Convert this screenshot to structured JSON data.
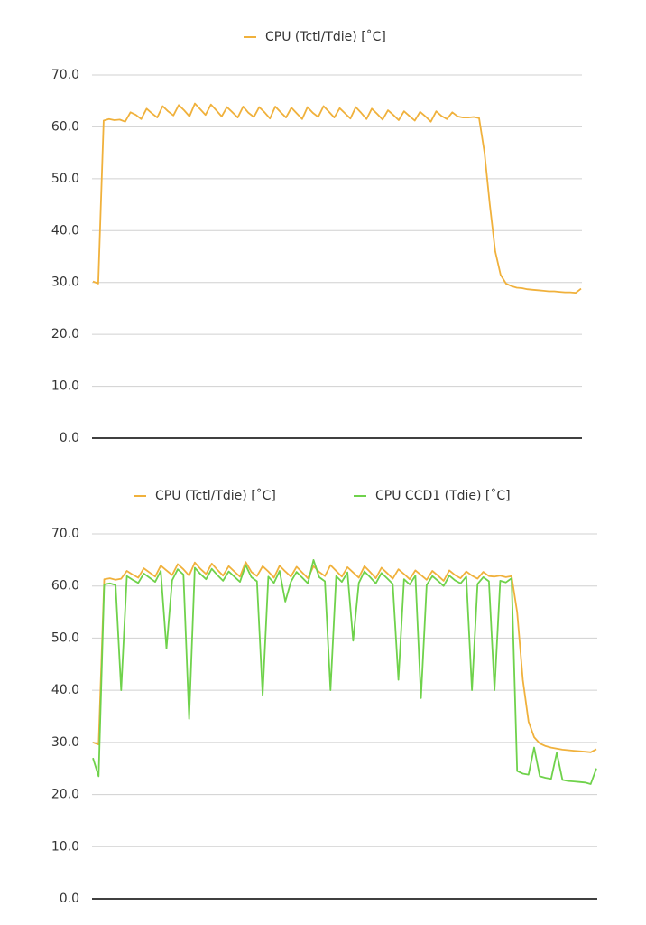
{
  "chart_data": [
    {
      "type": "line",
      "series": [
        {
          "name": "CPU (Tctl/Tdie) [˚C]",
          "color": "#f0b13c",
          "values": [
            30.2,
            29.8,
            61.2,
            61.5,
            61.3,
            61.4,
            61.0,
            62.8,
            62.3,
            61.5,
            63.5,
            62.6,
            61.8,
            64.0,
            63.0,
            62.2,
            64.2,
            63.2,
            62.0,
            64.5,
            63.4,
            62.3,
            64.3,
            63.2,
            62.0,
            63.8,
            62.8,
            61.8,
            63.9,
            62.7,
            61.9,
            63.8,
            62.8,
            61.6,
            63.9,
            62.8,
            61.8,
            63.7,
            62.6,
            61.5,
            63.8,
            62.7,
            61.9,
            64.0,
            62.9,
            61.8,
            63.6,
            62.6,
            61.6,
            63.8,
            62.7,
            61.5,
            63.5,
            62.5,
            61.4,
            63.2,
            62.3,
            61.3,
            63.0,
            62.1,
            61.2,
            62.9,
            62.0,
            61.0,
            63.0,
            62.1,
            61.5,
            62.8,
            62.0,
            61.8,
            61.8,
            61.9,
            61.7,
            55.0,
            45.0,
            36.0,
            31.5,
            29.8,
            29.3,
            29.0,
            28.9,
            28.7,
            28.6,
            28.5,
            28.4,
            28.3,
            28.3,
            28.2,
            28.1,
            28.1,
            28.0,
            28.8
          ]
        }
      ],
      "ylim": [
        0,
        70
      ],
      "yticks": [
        {
          "value": 0,
          "label": "0.0"
        },
        {
          "value": 10,
          "label": "10.0"
        },
        {
          "value": 20,
          "label": "20.0"
        },
        {
          "value": 30,
          "label": "30.0"
        },
        {
          "value": 40,
          "label": "40.0"
        },
        {
          "value": 50,
          "label": "50.0"
        },
        {
          "value": 60,
          "label": "60.0"
        },
        {
          "value": 70,
          "label": "70.0"
        }
      ],
      "grid": true,
      "legend": "top"
    },
    {
      "type": "line",
      "series": [
        {
          "name": "CPU (Tctl/Tdie) [˚C]",
          "color": "#f0b13c",
          "values": [
            30.0,
            29.6,
            61.3,
            61.5,
            61.2,
            61.4,
            62.9,
            62.2,
            61.6,
            63.4,
            62.6,
            61.8,
            63.9,
            63.0,
            62.1,
            64.2,
            63.2,
            62.0,
            64.5,
            63.3,
            62.3,
            64.3,
            63.1,
            62.0,
            63.8,
            62.8,
            61.8,
            64.6,
            62.7,
            61.9,
            63.8,
            62.8,
            61.6,
            63.9,
            62.8,
            61.8,
            63.7,
            62.6,
            61.5,
            63.8,
            62.7,
            61.9,
            64.0,
            62.9,
            61.8,
            63.6,
            62.6,
            61.6,
            63.8,
            62.7,
            61.5,
            63.5,
            62.5,
            61.4,
            63.2,
            62.3,
            61.3,
            63.0,
            62.1,
            61.2,
            62.9,
            62.0,
            61.0,
            63.0,
            62.1,
            61.5,
            62.8,
            62.0,
            61.4,
            62.7,
            61.9,
            61.8,
            62.0,
            61.7,
            61.9,
            55.0,
            42.0,
            34.0,
            31.0,
            29.8,
            29.3,
            29.0,
            28.8,
            28.6,
            28.5,
            28.4,
            28.3,
            28.2,
            28.1,
            28.7
          ]
        },
        {
          "name": "CPU CCD1 (Tdie) [˚C]",
          "color": "#6fd24b",
          "values": [
            27.0,
            23.5,
            60.3,
            60.5,
            60.2,
            40.0,
            61.9,
            61.2,
            60.6,
            62.4,
            61.6,
            60.8,
            62.9,
            48.0,
            61.1,
            63.2,
            62.2,
            34.5,
            63.5,
            62.3,
            61.3,
            63.3,
            62.1,
            61.0,
            62.8,
            61.8,
            60.8,
            64.0,
            61.7,
            60.9,
            39.0,
            61.8,
            60.6,
            62.9,
            57.0,
            60.8,
            62.7,
            61.6,
            60.5,
            65.0,
            61.7,
            60.9,
            40.0,
            61.9,
            60.8,
            62.6,
            49.5,
            60.6,
            62.8,
            61.7,
            60.5,
            62.5,
            61.5,
            60.4,
            42.0,
            61.3,
            60.3,
            62.0,
            38.5,
            60.2,
            61.9,
            61.0,
            60.0,
            62.0,
            61.1,
            60.5,
            61.8,
            40.0,
            60.4,
            61.7,
            60.9,
            40.0,
            61.0,
            60.7,
            61.5,
            24.5,
            24.0,
            23.8,
            29.0,
            23.5,
            23.2,
            23.0,
            28.0,
            22.8,
            22.6,
            22.5,
            22.4,
            22.3,
            22.0,
            25.0
          ]
        }
      ],
      "ylim": [
        0,
        70
      ],
      "yticks": [
        {
          "value": 0,
          "label": "0.0"
        },
        {
          "value": 10,
          "label": "10.0"
        },
        {
          "value": 20,
          "label": "20.0"
        },
        {
          "value": 30,
          "label": "30.0"
        },
        {
          "value": 40,
          "label": "40.0"
        },
        {
          "value": 50,
          "label": "50.0"
        },
        {
          "value": 60,
          "label": "60.0"
        },
        {
          "value": 70,
          "label": "70.0"
        }
      ],
      "grid": true,
      "legend": "top"
    }
  ]
}
